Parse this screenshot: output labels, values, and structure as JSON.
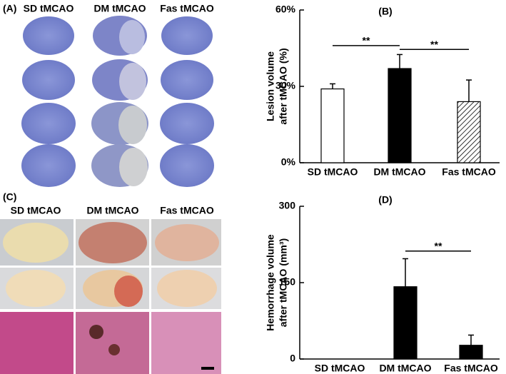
{
  "panels": [
    {
      "label": "(A)",
      "columns": [
        "SD tMCAO",
        "DM tMCAO",
        "Fas tMCAO"
      ]
    },
    {
      "label": "(C)",
      "columns": [
        "SD tMCAO",
        "DM tMCAO",
        "Fas tMCAO"
      ]
    }
  ],
  "chart_data": [
    {
      "type": "bar",
      "panel_label": "(B)",
      "y_label": [
        "Lesion volume",
        "after tMCAO (%)"
      ],
      "categories": [
        "SD tMCAO",
        "DM tMCAO",
        "Fas tMCAO"
      ],
      "values": [
        29,
        37,
        24
      ],
      "errors": [
        2,
        5.5,
        8.5
      ],
      "colors": [
        "#ffffff",
        "#000000",
        "#ffffff"
      ],
      "hatch": [
        false,
        false,
        true
      ],
      "ylim": [
        0,
        60
      ],
      "yticks": [
        {
          "value": 0,
          "label": "0%"
        },
        {
          "value": 30,
          "label": "30%"
        },
        {
          "value": 60,
          "label": "60%"
        }
      ],
      "significance": [
        {
          "from": 0,
          "to": 1,
          "y": 46,
          "label": "**"
        },
        {
          "from": 1,
          "to": 2,
          "y": 44.5,
          "label": "**"
        }
      ]
    },
    {
      "type": "bar",
      "panel_label": "(D)",
      "y_label": [
        "Hemorrhage volume",
        "after tMCAO (mm³)"
      ],
      "categories": [
        "SD tMCAO",
        "DM tMCAO",
        "Fas tMCAO"
      ],
      "values": [
        0,
        142,
        27
      ],
      "errors": [
        null,
        55,
        20
      ],
      "colors": [
        "#000000",
        "#000000",
        "#000000"
      ],
      "hatch": [
        false,
        false,
        false
      ],
      "ylim": [
        0,
        300
      ],
      "yticks": [
        0,
        150,
        300
      ],
      "significance": [
        {
          "from": 1,
          "to": 2,
          "y": 212,
          "label": "**"
        }
      ]
    }
  ]
}
